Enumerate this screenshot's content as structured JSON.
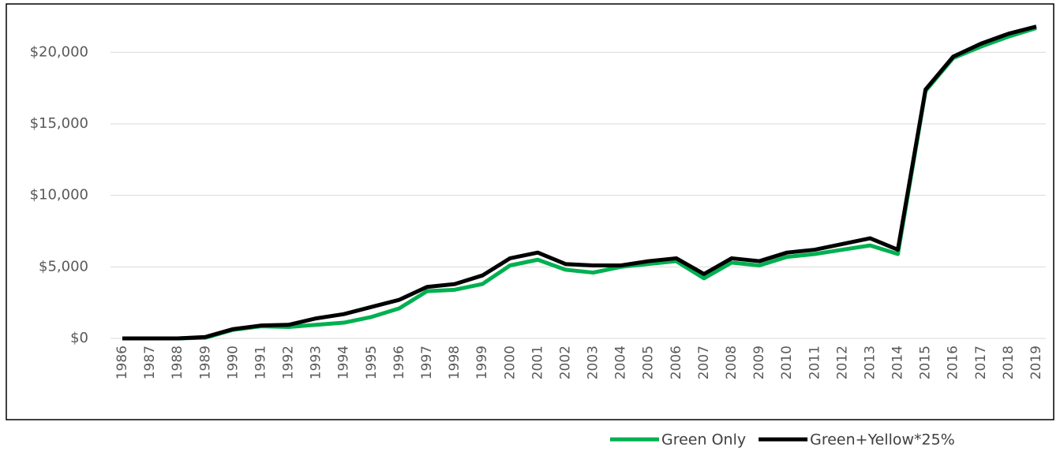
{
  "chart_data": {
    "type": "line",
    "categories": [
      "1986",
      "1987",
      "1988",
      "1989",
      "1990",
      "1991",
      "1992",
      "1993",
      "1994",
      "1995",
      "1996",
      "1997",
      "1998",
      "1999",
      "2000",
      "2001",
      "2002",
      "2003",
      "2004",
      "2005",
      "2006",
      "2007",
      "2008",
      "2009",
      "2010",
      "2011",
      "2012",
      "2013",
      "2014",
      "2015",
      "2016",
      "2017",
      "2018",
      "2019"
    ],
    "series": [
      {
        "name": "Green Only",
        "color": "#00b050",
        "values": [
          0,
          0,
          0,
          50,
          600,
          850,
          800,
          950,
          1100,
          1500,
          2100,
          3300,
          3400,
          3800,
          5100,
          5500,
          4800,
          4600,
          5000,
          5200,
          5400,
          4200,
          5300,
          5100,
          5700,
          5900,
          6200,
          6500,
          5900,
          17300,
          19600,
          20400,
          21100,
          21700
        ]
      },
      {
        "name": "Green+Yellow*25%",
        "color": "#000000",
        "values": [
          0,
          0,
          0,
          100,
          650,
          900,
          950,
          1400,
          1700,
          2200,
          2700,
          3600,
          3800,
          4400,
          5600,
          6000,
          5200,
          5100,
          5100,
          5400,
          5600,
          4500,
          5600,
          5400,
          6000,
          6200,
          6600,
          7000,
          6200,
          17400,
          19700,
          20600,
          21300,
          21800
        ]
      }
    ],
    "ylim": [
      0,
      22000
    ],
    "yticks": [
      {
        "value": 0,
        "label": "$0"
      },
      {
        "value": 5000,
        "label": "$5,000"
      },
      {
        "value": 10000,
        "label": "$10,000"
      },
      {
        "value": 15000,
        "label": "$15,000"
      },
      {
        "value": 20000,
        "label": "$20,000"
      }
    ],
    "grid": true,
    "legend": "bottom"
  }
}
